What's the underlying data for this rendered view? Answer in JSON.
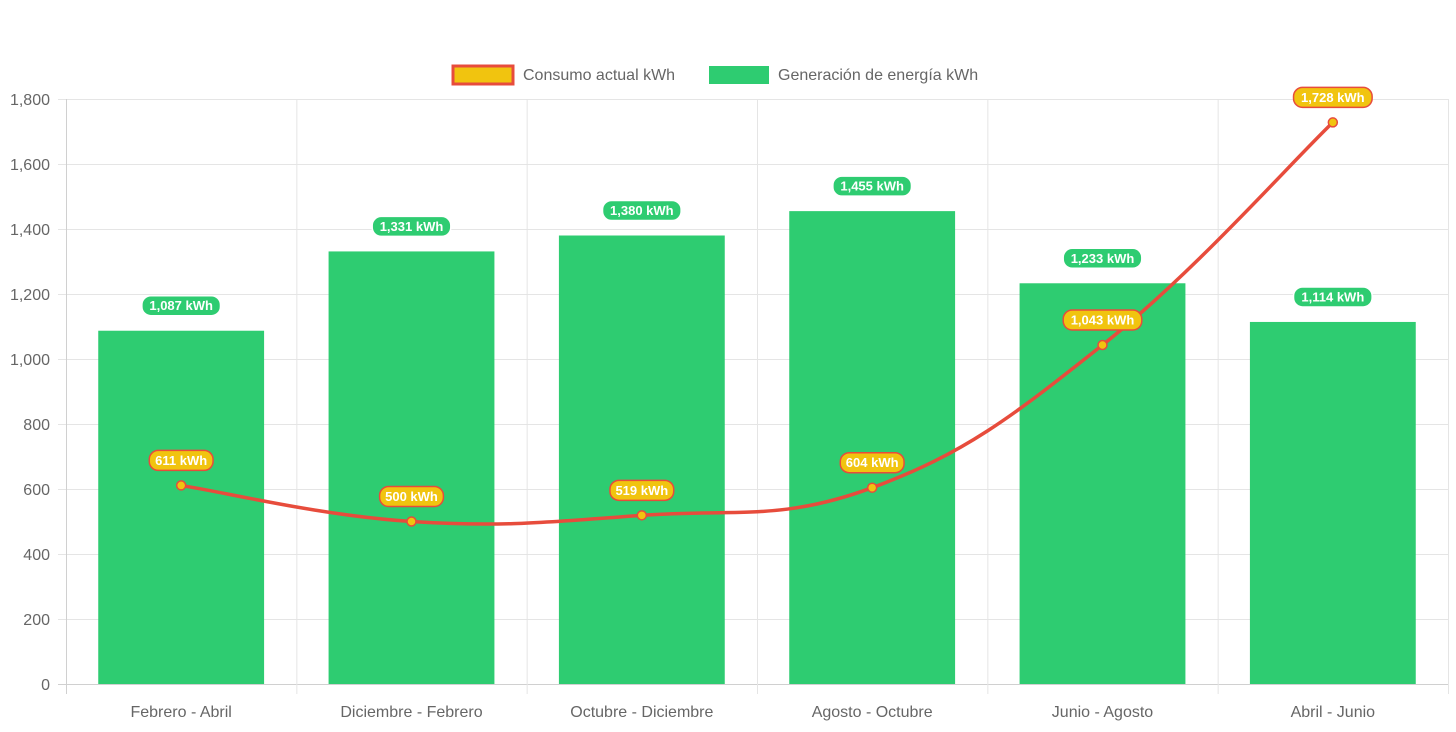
{
  "chart_data": {
    "type": "bar",
    "categories": [
      "Febrero - Abril",
      "Diciembre - Febrero",
      "Octubre - Diciembre",
      "Agosto - Octubre",
      "Junio - Agosto",
      "Abril - Junio"
    ],
    "series": [
      {
        "name": "Consumo actual kWh",
        "type": "line",
        "values": [
          611,
          500,
          519,
          604,
          1043,
          1728
        ],
        "labels": [
          "611 kWh",
          "500 kWh",
          "519 kWh",
          "604 kWh",
          "1,043 kWh",
          "1,728 kWh"
        ],
        "color": "#e74c3c",
        "fill_color": "#f1c40f"
      },
      {
        "name": "Generación de energía kWh",
        "type": "bar",
        "values": [
          1087,
          1331,
          1380,
          1455,
          1233,
          1114
        ],
        "labels": [
          "1,087 kWh",
          "1,331 kWh",
          "1,380 kWh",
          "1,455 kWh",
          "1,233 kWh",
          "1,114 kWh"
        ],
        "color": "#2ecc71"
      }
    ],
    "ylim": [
      0,
      1800
    ],
    "yticks": [
      0,
      200,
      400,
      600,
      800,
      1000,
      1200,
      1400,
      1600,
      1800
    ],
    "ytick_labels": [
      "0",
      "200",
      "400",
      "600",
      "800",
      "1,000",
      "1,200",
      "1,400",
      "1,600",
      "1,800"
    ],
    "grid": true,
    "legend_position": "top-center",
    "title": "",
    "xlabel": "",
    "ylabel": ""
  }
}
